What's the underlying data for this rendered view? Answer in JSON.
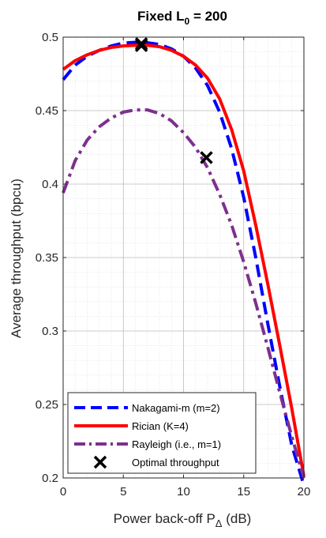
{
  "chart_data": {
    "type": "line",
    "title_main": "Fixed L",
    "title_sub": "0",
    "title_rest": " = 200",
    "xlabel_main": "Power back-off P",
    "xlabel_sub": "Δ",
    "xlabel_rest": " (dB)",
    "ylabel": "Average throughput (bpcu)",
    "xlim": [
      0,
      20
    ],
    "ylim": [
      0.2,
      0.5
    ],
    "xticks": [
      0,
      5,
      10,
      15,
      20
    ],
    "xtick_labels": [
      "0",
      "5",
      "10",
      "15",
      "20"
    ],
    "yticks": [
      0.2,
      0.25,
      0.3,
      0.35,
      0.4,
      0.45,
      0.5
    ],
    "ytick_labels": [
      "0.2",
      "0.25",
      "0.3",
      "0.35",
      "0.4",
      "0.45",
      "0.5"
    ],
    "grid": true,
    "minor_grid": true,
    "legend_position": "bottom-left",
    "series": [
      {
        "name": "Nakagami-m (m=2)",
        "color": "#0000ff",
        "style": "dashed",
        "x": [
          0,
          1,
          2,
          3,
          4,
          5,
          6,
          7,
          8,
          9,
          10,
          11,
          12,
          13,
          14,
          15,
          16,
          17,
          18,
          19,
          20
        ],
        "y": [
          0.471,
          0.481,
          0.487,
          0.491,
          0.494,
          0.496,
          0.4965,
          0.4962,
          0.495,
          0.492,
          0.487,
          0.479,
          0.467,
          0.449,
          0.424,
          0.391,
          0.35,
          0.305,
          0.262,
          0.222,
          0.195
        ]
      },
      {
        "name": "Rician (K=4)",
        "color": "#ff0000",
        "style": "solid",
        "x": [
          0,
          1,
          2,
          3,
          4,
          5,
          6,
          7,
          8,
          9,
          10,
          11,
          12,
          13,
          14,
          15,
          16,
          17,
          18,
          19,
          20
        ],
        "y": [
          0.478,
          0.484,
          0.488,
          0.491,
          0.493,
          0.494,
          0.4944,
          0.4945,
          0.4935,
          0.491,
          0.487,
          0.481,
          0.472,
          0.458,
          0.437,
          0.409,
          0.372,
          0.332,
          0.29,
          0.247,
          0.201
        ]
      },
      {
        "name": "Rayleigh (i.e., m=1)",
        "color": "#7e2f8e",
        "style": "dashdot",
        "x": [
          0,
          1,
          2,
          3,
          4,
          5,
          6,
          7,
          8,
          9,
          10,
          11,
          12,
          13,
          14,
          15,
          16,
          17,
          18,
          19,
          20
        ],
        "y": [
          0.394,
          0.416,
          0.43,
          0.439,
          0.445,
          0.449,
          0.4505,
          0.4505,
          0.448,
          0.443,
          0.435,
          0.425,
          0.411,
          0.393,
          0.372,
          0.347,
          0.319,
          0.289,
          0.258,
          0.228,
          0.2
        ]
      }
    ],
    "markers": {
      "name": "Optimal throughput",
      "color": "#000000",
      "symbol": "x",
      "points": [
        {
          "x": 6.5,
          "y": 0.4942
        },
        {
          "x": 6.5,
          "y": 0.4955
        },
        {
          "x": 11.9,
          "y": 0.418
        }
      ]
    }
  }
}
